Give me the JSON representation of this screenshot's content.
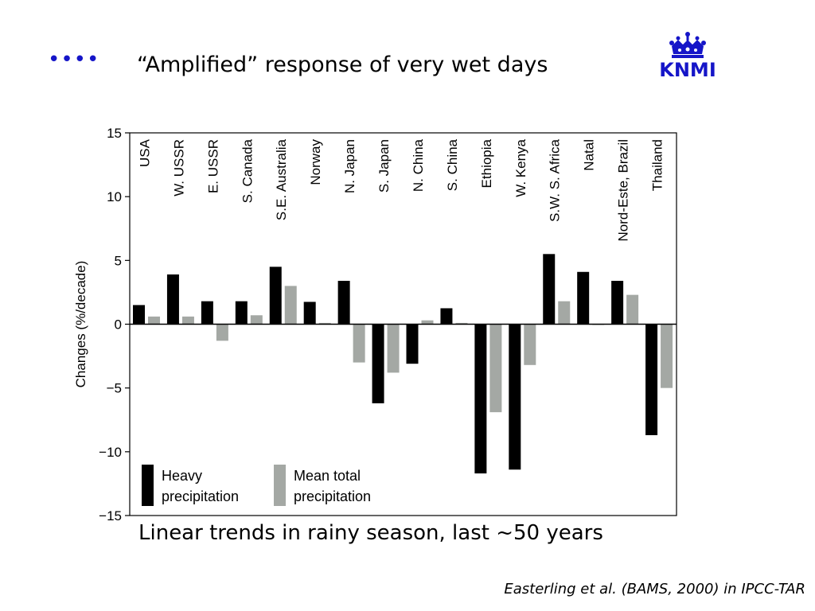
{
  "header": {
    "bullet": "••••",
    "title": "“Amplified” response of very wet days",
    "logo_text": "KNMI"
  },
  "colors": {
    "accent": "#1515c8",
    "heavy": "#000000",
    "mean": "#a4a8a4"
  },
  "chart_data": {
    "type": "bar",
    "ylabel": "Changes (%/decade)",
    "ylim": [
      -15,
      15
    ],
    "yticks": [
      15,
      10,
      5,
      0,
      -5,
      -10,
      -15
    ],
    "ytick_labels": [
      "15",
      "10",
      "5",
      "0",
      "−5",
      "−10",
      "−15"
    ],
    "categories": [
      "USA",
      "W. USSR",
      "E. USSR",
      "S. Canada",
      "S.E. Australia",
      "Norway",
      "N. Japan",
      "S. Japan",
      "N. China",
      "S. China",
      "Ethiopia",
      "W. Kenya",
      "S.W. S. Africa",
      "Natal",
      "Nord-Este, Brazil",
      "Thailand"
    ],
    "series": [
      {
        "name": "Heavy precipitation",
        "values": [
          1.5,
          3.9,
          1.8,
          1.8,
          4.5,
          1.75,
          3.4,
          -6.2,
          -3.1,
          1.25,
          -11.7,
          -11.4,
          5.5,
          4.1,
          3.4,
          -8.7
        ]
      },
      {
        "name": "Mean total precipitation",
        "values": [
          0.6,
          0.6,
          -1.3,
          0.7,
          3.0,
          0.1,
          -3.0,
          -3.8,
          0.3,
          0.1,
          -6.9,
          -3.2,
          1.8,
          0.0,
          2.3,
          -5.0
        ]
      }
    ],
    "legend": {
      "placement": "bottom-left",
      "items": [
        {
          "line1": "Heavy",
          "line2": "precipitation"
        },
        {
          "line1": "Mean total",
          "line2": "precipitation"
        }
      ]
    }
  },
  "caption": "Linear trends in rainy season, last ~50 years",
  "citation": "Easterling et al. (BAMS, 2000) in IPCC-TAR"
}
